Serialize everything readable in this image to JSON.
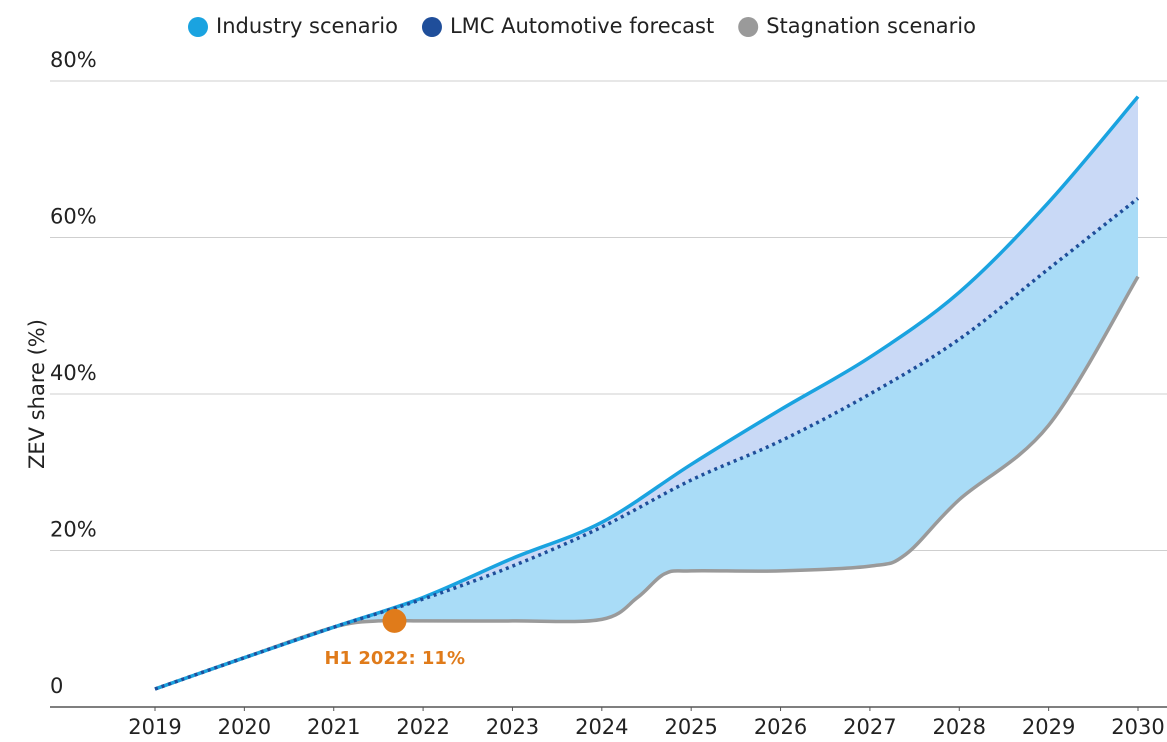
{
  "chart_data": {
    "type": "line",
    "y_label": "ZEV share (%)",
    "xlim": [
      2019,
      2030
    ],
    "xticks": [
      2019,
      2020,
      2021,
      2022,
      2023,
      2024,
      2025,
      2026,
      2027,
      2028,
      2029,
      2030
    ],
    "ylim": [
      0,
      80
    ],
    "yticks": [
      0,
      {
        "value": 20,
        "label": "20%"
      },
      {
        "value": 40,
        "label": "40%"
      },
      {
        "value": 60,
        "label": "60%"
      },
      {
        "value": 80,
        "label": "80%"
      }
    ],
    "grid": true,
    "legend": "top",
    "series": [
      {
        "name": "Industry scenario",
        "color": "#1aa3e0",
        "x": [
          2019,
          2020,
          2021,
          2022,
          2023,
          2024,
          2025,
          2026,
          2027,
          2028,
          2029,
          2030
        ],
        "values": [
          2.3,
          6.3,
          10.2,
          14,
          19,
          23.6,
          31,
          38,
          44.7,
          53,
          64.5,
          78
        ]
      },
      {
        "name": "LMC Automotive forecast",
        "color": "#1f4e9a",
        "x": [
          2019,
          2020,
          2021,
          2022,
          2023,
          2024,
          2025,
          2026,
          2027,
          2028,
          2029,
          2030
        ],
        "values": [
          2.3,
          6.3,
          10.2,
          13.8,
          18,
          23,
          29,
          34,
          40,
          47,
          56,
          65
        ]
      },
      {
        "name": "Stagnation scenario",
        "color": "#9a9a9a",
        "x": [
          2019,
          2020,
          2021,
          2021.5,
          2022,
          2023,
          2024,
          2024.4,
          2024.7,
          2025,
          2026,
          2027,
          2027.4,
          2028,
          2029,
          2030
        ],
        "values": [
          2.3,
          6.3,
          10.2,
          11,
          11,
          11,
          11.2,
          14,
          17,
          17.4,
          17.4,
          18,
          19.5,
          26.5,
          36,
          55
        ]
      }
    ],
    "annotation": {
      "x": 2021.68,
      "value": 11,
      "label": "H1 2022: 11%",
      "color": "#e07b1a"
    }
  }
}
